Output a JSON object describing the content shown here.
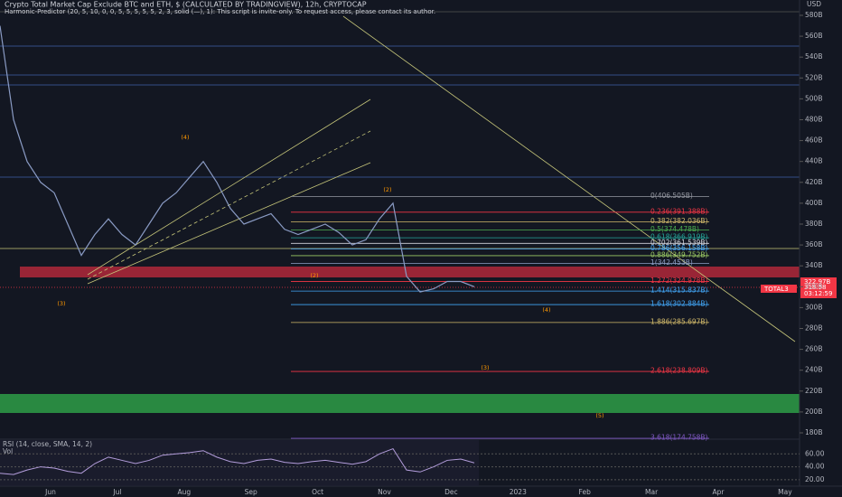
{
  "header": {
    "title": "Crypto Total Market Cap Exclude BTC and ETH, $ (CALCULATED BY TRADINGVIEW), 12h, CRYPTOCAP",
    "indicator": "Harmonic-Predictor (20, 5, 10, 0, 0, 5, 5, 5, 5, 5, 2, 3, solid (—), 1): This script is invite-only. To request access, please contact its author.",
    "currency": "USD",
    "symbol": "TOTAL3",
    "last_price": "322.97B",
    "price2": "318.58",
    "countdown": "03:12:59"
  },
  "chart_data": {
    "type": "line",
    "color": "#8a9bc4",
    "values": [
      570,
      480,
      440,
      420,
      410,
      380,
      350,
      370,
      385,
      370,
      360,
      380,
      400,
      410,
      425,
      440,
      420,
      395,
      380,
      385,
      390,
      375,
      370,
      375,
      380,
      372,
      360,
      365,
      385,
      400,
      330,
      315,
      318,
      325,
      325,
      320
    ],
    "ylim": [
      174.8,
      594.7
    ],
    "yticks": [
      {
        "value": 580,
        "label": "580B"
      },
      {
        "value": 560,
        "label": "560B"
      },
      {
        "value": 540,
        "label": "540B"
      },
      {
        "value": 520,
        "label": "520B"
      },
      {
        "value": 500,
        "label": "500B"
      },
      {
        "value": 480,
        "label": "480B"
      },
      {
        "value": 460,
        "label": "460B"
      },
      {
        "value": 440,
        "label": "440B"
      },
      {
        "value": 420,
        "label": "420B"
      },
      {
        "value": 400,
        "label": "400B"
      },
      {
        "value": 380,
        "label": "380B"
      },
      {
        "value": 360,
        "label": "360B"
      },
      {
        "value": 340,
        "label": "340B"
      },
      {
        "value": 320,
        "label": "320B"
      },
      {
        "value": 300,
        "label": "300B"
      },
      {
        "value": 280,
        "label": "280B"
      },
      {
        "value": 260,
        "label": "260B"
      },
      {
        "value": 240,
        "label": "240B"
      },
      {
        "value": 220,
        "label": "220B"
      },
      {
        "value": 200,
        "label": "200B"
      },
      {
        "value": 180,
        "label": "180B"
      }
    ],
    "months": [
      "Jun",
      "Jul",
      "Aug",
      "Sep",
      "Oct",
      "Nov",
      "Dec",
      "2023",
      "Feb",
      "Mar",
      "Apr",
      "May"
    ],
    "fib_levels": [
      {
        "price": 406.505,
        "label": "0(406.505B)",
        "color": "#9598a1"
      },
      {
        "price": 391.388,
        "label": "0.236(391.388B)",
        "color": "#f23645"
      },
      {
        "price": 382.036,
        "label": "0.382(382.036B)",
        "color": "#d1b96a"
      },
      {
        "price": 374.478,
        "label": "0.5(374.478B)",
        "color": "#4caf50"
      },
      {
        "price": 366.919,
        "label": "0.618(366.919B)",
        "color": "#26a69a"
      },
      {
        "price": 361.539,
        "label": "0.702(361.539B)",
        "color": "#d1d4dc"
      },
      {
        "price": 356.158,
        "label": "0.786(356.158B)",
        "color": "#42a5f5"
      },
      {
        "price": 349.752,
        "label": "0.886(349.752B)",
        "color": "#9ccc65"
      },
      {
        "price": 342.453,
        "label": "1(342.453B)",
        "color": "#8d9ec4"
      },
      {
        "price": 324.978,
        "label": "1.272(324.978B)",
        "color": "#f23645"
      },
      {
        "price": 315.837,
        "label": "1.414(315.837B)",
        "color": "#42a5f5"
      },
      {
        "price": 302.884,
        "label": "1.618(302.884B)",
        "color": "#42a5f5"
      },
      {
        "price": 285.697,
        "label": "1.886(285.697B)",
        "color": "#d1b96a"
      },
      {
        "price": 238.809,
        "label": "2.618(238.809B)",
        "color": "#f23645"
      },
      {
        "price": 174.758,
        "label": "3.618(174.758B)",
        "color": "#7e57c2"
      }
    ],
    "wave_labels": [
      "(4)",
      "(2)",
      "(3)",
      "(4)",
      "(3)",
      "(5)",
      "(2)"
    ]
  },
  "rsi": {
    "label": "RSI (14, close, SMA, 14, 2)",
    "volume_label": "Vol",
    "color": "#b39ddb",
    "values": [
      30,
      28,
      35,
      40,
      38,
      33,
      30,
      45,
      55,
      50,
      45,
      50,
      58,
      60,
      62,
      65,
      55,
      48,
      45,
      50,
      52,
      47,
      45,
      48,
      50,
      47,
      44,
      48,
      60,
      68,
      35,
      32,
      40,
      50,
      52,
      46
    ],
    "ylim": [
      10,
      81.4
    ],
    "yticks": [
      {
        "value": 60,
        "label": "60.00"
      },
      {
        "value": 40,
        "label": "40.00"
      },
      {
        "value": 20,
        "label": "20.00"
      }
    ]
  }
}
